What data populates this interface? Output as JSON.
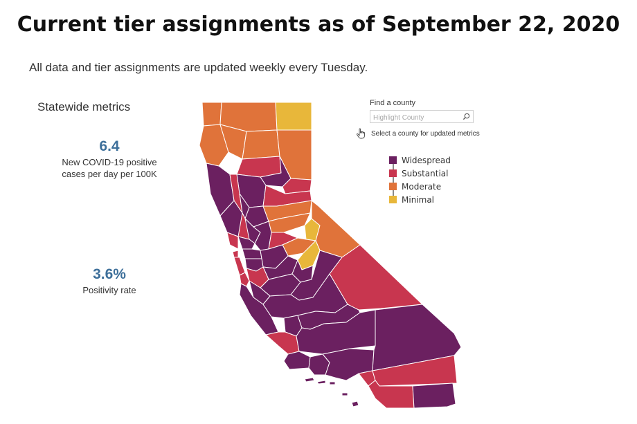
{
  "header": {
    "title": "Current tier assignments as of September 22, 2020",
    "subtitle": "All data and tier assignments are updated weekly every Tuesday."
  },
  "statewide": {
    "heading": "Statewide metrics",
    "cases_value": "6.4",
    "cases_label_line1": "New COVID-19 positive",
    "cases_label_line2": "cases per day per 100K",
    "positivity_value": "3.6%",
    "positivity_label": "Positivity rate"
  },
  "find": {
    "label": "Find a county",
    "placeholder": "Highlight County",
    "select_hint": "Select a county for updated metrics"
  },
  "legend": {
    "items": [
      {
        "label": "Widespread",
        "color": "#6b2060"
      },
      {
        "label": "Substantial",
        "color": "#c8364f"
      },
      {
        "label": "Moderate",
        "color": "#e0733a"
      },
      {
        "label": "Minimal",
        "color": "#e8b73a"
      }
    ]
  },
  "colors": {
    "widespread": "#6b2060",
    "substantial": "#c8364f",
    "moderate": "#e0733a",
    "minimal": "#e8b73a",
    "metric_value": "#3d6f9a"
  },
  "map": {
    "region": "California",
    "tiers_shown": [
      "Widespread",
      "Substantial",
      "Moderate",
      "Minimal"
    ]
  }
}
